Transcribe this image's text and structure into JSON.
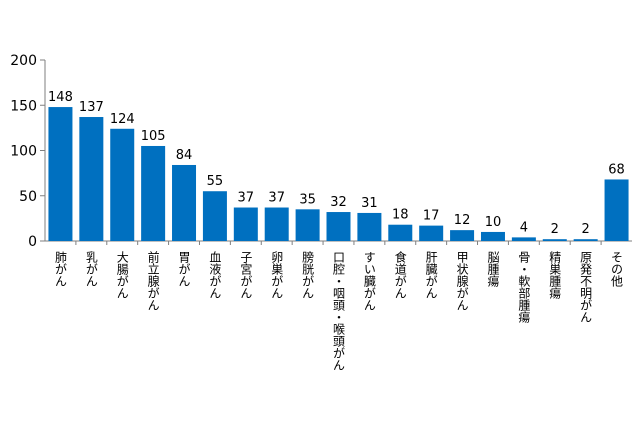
{
  "chart_data": {
    "type": "bar",
    "categories": [
      "肺がん",
      "乳がん",
      "大腸がん",
      "前立腺がん",
      "胃がん",
      "血液がん",
      "子宮がん",
      "卵巣がん",
      "膀胱がん",
      "口腔・咽頭・喉頭がん",
      "すい臓がん",
      "食道がん",
      "肝臓がん",
      "甲状腺がん",
      "脳腫瘍",
      "骨・軟部腫瘍",
      "精巣腫瘍",
      "原発不明がん",
      "その他"
    ],
    "values": [
      148,
      137,
      124,
      105,
      84,
      55,
      37,
      37,
      35,
      32,
      31,
      18,
      17,
      12,
      10,
      4,
      2,
      2,
      68
    ],
    "ylim": [
      0,
      200
    ],
    "yticks": [
      0,
      50,
      100,
      150,
      200
    ],
    "grid": false,
    "legend": "none",
    "bar_color": "#0070C0",
    "axis_color": "#7f7f7f"
  }
}
